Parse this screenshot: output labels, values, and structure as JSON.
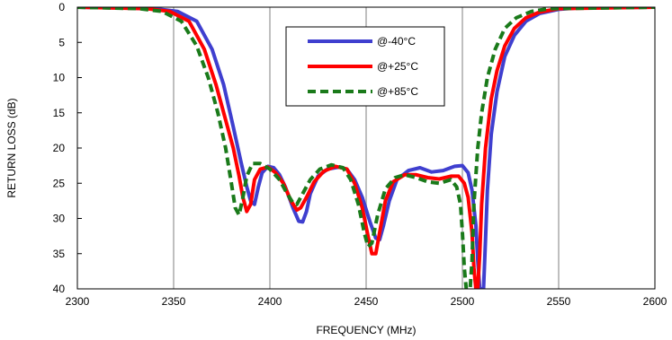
{
  "chart_data": {
    "type": "line",
    "title": "",
    "xlabel": "FREQUENCY  (MHz)",
    "ylabel": "RETURN LOSS (dB)",
    "xlim": [
      2300,
      2600
    ],
    "ylim": [
      0,
      40
    ],
    "y_inverted": true,
    "x_ticks": [
      2300,
      2350,
      2400,
      2450,
      2500,
      2550,
      2600
    ],
    "y_ticks": [
      0,
      5,
      10,
      15,
      20,
      25,
      30,
      35,
      40
    ],
    "grid": "vertical",
    "legend_position": "top-center",
    "series": [
      {
        "name": "@-40°C",
        "color": "#3f3fcf",
        "style": "solid",
        "points": [
          [
            2300,
            0
          ],
          [
            2340,
            0.2
          ],
          [
            2352,
            0.6
          ],
          [
            2362,
            2
          ],
          [
            2370,
            6
          ],
          [
            2376,
            11
          ],
          [
            2381,
            17
          ],
          [
            2385,
            22
          ],
          [
            2388,
            25.5
          ],
          [
            2390,
            27.5
          ],
          [
            2392,
            28
          ],
          [
            2394,
            25.5
          ],
          [
            2396,
            23.5
          ],
          [
            2399,
            22.6
          ],
          [
            2402,
            22.8
          ],
          [
            2405,
            23.8
          ],
          [
            2408,
            25.5
          ],
          [
            2412,
            28.5
          ],
          [
            2415,
            30.4
          ],
          [
            2417,
            30.5
          ],
          [
            2419,
            29
          ],
          [
            2421,
            26.5
          ],
          [
            2425,
            24
          ],
          [
            2430,
            23
          ],
          [
            2436,
            22.7
          ],
          [
            2440,
            23
          ],
          [
            2444,
            24.5
          ],
          [
            2448,
            27
          ],
          [
            2452,
            30.5
          ],
          [
            2455,
            32.8
          ],
          [
            2457,
            33
          ],
          [
            2459,
            31
          ],
          [
            2462,
            27.5
          ],
          [
            2466,
            24.5
          ],
          [
            2472,
            23.2
          ],
          [
            2478,
            22.8
          ],
          [
            2484,
            23.4
          ],
          [
            2490,
            23.2
          ],
          [
            2496,
            22.6
          ],
          [
            2500,
            22.5
          ],
          [
            2503,
            23.5
          ],
          [
            2505,
            26
          ],
          [
            2507,
            31
          ],
          [
            2508,
            36
          ],
          [
            2509,
            40
          ],
          [
            2511,
            40
          ],
          [
            2512,
            33
          ],
          [
            2513,
            26
          ],
          [
            2515,
            18
          ],
          [
            2518,
            12
          ],
          [
            2522,
            7
          ],
          [
            2527,
            4
          ],
          [
            2533,
            2
          ],
          [
            2540,
            0.9
          ],
          [
            2550,
            0.3
          ],
          [
            2560,
            0.1
          ],
          [
            2600,
            0
          ]
        ]
      },
      {
        "name": "@+25°C",
        "color": "#ff0000",
        "style": "solid",
        "points": [
          [
            2300,
            0
          ],
          [
            2336,
            0.2
          ],
          [
            2348,
            0.6
          ],
          [
            2358,
            2
          ],
          [
            2366,
            6
          ],
          [
            2372,
            11
          ],
          [
            2377,
            16
          ],
          [
            2381,
            20
          ],
          [
            2384,
            24
          ],
          [
            2386,
            27
          ],
          [
            2388,
            29
          ],
          [
            2390,
            28
          ],
          [
            2392,
            24.5
          ],
          [
            2395,
            23
          ],
          [
            2399,
            22.7
          ],
          [
            2403,
            23.5
          ],
          [
            2407,
            25
          ],
          [
            2411,
            27.5
          ],
          [
            2414,
            28.8
          ],
          [
            2416,
            28.5
          ],
          [
            2419,
            27
          ],
          [
            2423,
            24.8
          ],
          [
            2428,
            23.3
          ],
          [
            2434,
            22.6
          ],
          [
            2440,
            23
          ],
          [
            2444,
            25
          ],
          [
            2448,
            28.5
          ],
          [
            2451,
            32.5
          ],
          [
            2453,
            35
          ],
          [
            2455,
            35
          ],
          [
            2457,
            32
          ],
          [
            2460,
            27.5
          ],
          [
            2464,
            24.8
          ],
          [
            2470,
            23.8
          ],
          [
            2476,
            23.8
          ],
          [
            2482,
            24.2
          ],
          [
            2488,
            24.4
          ],
          [
            2494,
            24
          ],
          [
            2498,
            24
          ],
          [
            2501,
            25
          ],
          [
            2503,
            27
          ],
          [
            2505,
            32
          ],
          [
            2506,
            37
          ],
          [
            2507,
            40
          ],
          [
            2508,
            40
          ],
          [
            2509,
            35
          ],
          [
            2510,
            28
          ],
          [
            2512,
            20
          ],
          [
            2515,
            13
          ],
          [
            2518,
            9
          ],
          [
            2522,
            5.5
          ],
          [
            2527,
            3
          ],
          [
            2533,
            1.5
          ],
          [
            2540,
            0.7
          ],
          [
            2550,
            0.2
          ],
          [
            2600,
            0
          ]
        ]
      },
      {
        "name": "@+85°C",
        "color": "#1a7a1a",
        "style": "dashed",
        "points": [
          [
            2300,
            0
          ],
          [
            2332,
            0.2
          ],
          [
            2344,
            0.6
          ],
          [
            2354,
            2
          ],
          [
            2362,
            5.5
          ],
          [
            2368,
            10
          ],
          [
            2373,
            15
          ],
          [
            2377,
            20
          ],
          [
            2380,
            25
          ],
          [
            2382,
            28.5
          ],
          [
            2384,
            29.5
          ],
          [
            2386,
            27
          ],
          [
            2388,
            24
          ],
          [
            2391,
            22.2
          ],
          [
            2395,
            22.2
          ],
          [
            2400,
            23
          ],
          [
            2405,
            24.5
          ],
          [
            2409,
            26.5
          ],
          [
            2412,
            27.8
          ],
          [
            2414,
            28
          ],
          [
            2417,
            26.5
          ],
          [
            2421,
            24.5
          ],
          [
            2426,
            23
          ],
          [
            2432,
            22.4
          ],
          [
            2438,
            22.8
          ],
          [
            2442,
            24.5
          ],
          [
            2446,
            28
          ],
          [
            2449,
            32
          ],
          [
            2451,
            34
          ],
          [
            2453,
            33.5
          ],
          [
            2456,
            29.5
          ],
          [
            2460,
            25.8
          ],
          [
            2465,
            24.2
          ],
          [
            2470,
            23.8
          ],
          [
            2476,
            24.2
          ],
          [
            2482,
            24.8
          ],
          [
            2488,
            25
          ],
          [
            2494,
            24.5
          ],
          [
            2497,
            25.5
          ],
          [
            2499,
            28
          ],
          [
            2500,
            32
          ],
          [
            2501,
            37
          ],
          [
            2502,
            40
          ],
          [
            2504,
            40
          ],
          [
            2505,
            36
          ],
          [
            2506,
            28
          ],
          [
            2508,
            20
          ],
          [
            2510,
            15
          ],
          [
            2513,
            10
          ],
          [
            2517,
            6
          ],
          [
            2522,
            3
          ],
          [
            2528,
            1.5
          ],
          [
            2536,
            0.6
          ],
          [
            2545,
            0.2
          ],
          [
            2600,
            0
          ]
        ]
      }
    ]
  }
}
